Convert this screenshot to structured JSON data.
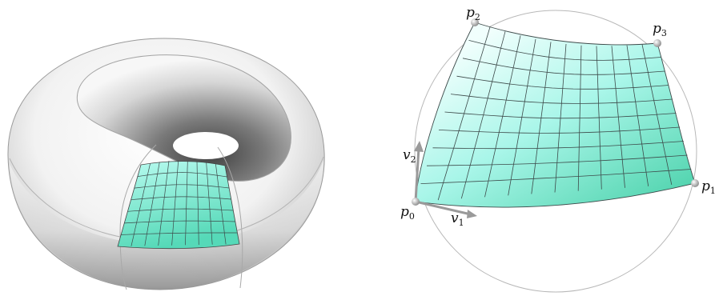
{
  "left_panel": {
    "surface": "torus",
    "patch_grid": {
      "rows": 7,
      "cols": 9
    }
  },
  "right_panel": {
    "surface": "spherical patch in circle",
    "patch_grid": {
      "rows": 10,
      "cols": 12
    },
    "labels": {
      "p0": {
        "base": "p",
        "sub": "0"
      },
      "p1": {
        "base": "p",
        "sub": "1"
      },
      "p2": {
        "base": "p",
        "sub": "2"
      },
      "p3": {
        "base": "p",
        "sub": "3"
      },
      "v1": {
        "base": "v",
        "sub": "1"
      },
      "v2": {
        "base": "v",
        "sub": "2"
      }
    }
  },
  "colors": {
    "patch_light": "#e8fffb",
    "patch_mid": "#9ff5e6",
    "patch_dark": "#55d6b4",
    "grid_line": "#3d4a4a",
    "outline": "#9a9a9a",
    "torus_light": "#ffffff",
    "torus_dark": "#6e6e6e"
  }
}
